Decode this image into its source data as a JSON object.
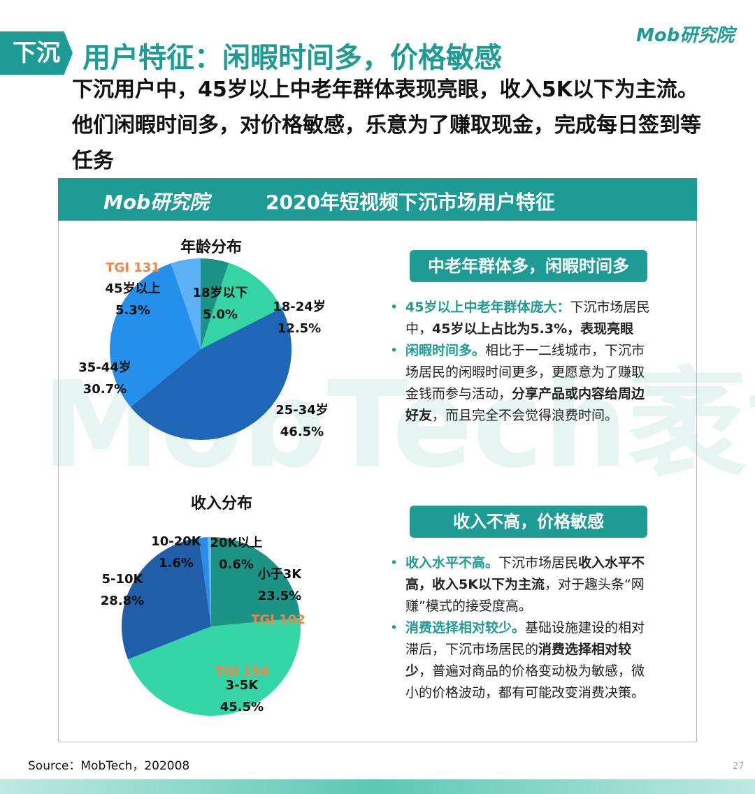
{
  "header": {
    "tag": "下沉",
    "title": "用户特征：闲暇时间多，价格敏感",
    "logo": "Mob研究院",
    "summary": "下沉用户中，45岁以上中老年群体表现亮眼，收入5K以下为主流。他们闲暇时间多，对价格敏感，乐意为了赚取现金，完成每日签到等任务"
  },
  "panel": {
    "title": "2020年短视频下沉市场用户特征",
    "watermark": "MobTech袤博"
  },
  "chart_data": [
    {
      "type": "pie",
      "title": "年龄分布",
      "categories": [
        "18岁以下",
        "18-24岁",
        "25-34岁",
        "35-44岁",
        "45岁以上"
      ],
      "values": [
        5.0,
        12.5,
        46.5,
        30.7,
        5.3
      ],
      "value_labels": [
        "5.0%",
        "12.5%",
        "46.5%",
        "30.7%",
        "5.3%"
      ],
      "colors": [
        "#1b9486",
        "#34d4a4",
        "#1f66b6",
        "#2490ec",
        "#5cb2f4"
      ],
      "annotations": [
        "TGI 131"
      ]
    },
    {
      "type": "pie",
      "title": "收入分布",
      "categories": [
        "小于3K",
        "3-5K",
        "5-10K",
        "10-20K",
        "20K以上"
      ],
      "values": [
        23.5,
        45.5,
        28.8,
        1.6,
        0.6
      ],
      "value_labels": [
        "23.5%",
        "45.5%",
        "28.8%",
        "1.6%",
        "0.6%"
      ],
      "colors": [
        "#1b9486",
        "#34d6a8",
        "#1f5ea8",
        "#2a8ee8",
        "#6ab8f5"
      ],
      "annotations": [
        "TGI 102",
        "TGI 156"
      ]
    }
  ],
  "insights": [
    {
      "heading": "中老年群体多，闲暇时间多",
      "bullets": [
        {
          "lead": "45岁以上中老年群体庞大：",
          "runs": [
            {
              "text": "下沉市场居民中，",
              "bold": false
            },
            {
              "text": "45岁以上占比为5.3%，表现亮眼",
              "bold": true
            }
          ]
        },
        {
          "lead": "闲暇时间多。",
          "runs": [
            {
              "text": "相比于一二线城市，下沉市场居民的闲暇时间更多，更愿意为了赚取金钱而参与活动，",
              "bold": false
            },
            {
              "text": "分享产品或内容给周边好友",
              "bold": true
            },
            {
              "text": "，而且完全不会觉得浪费时间。",
              "bold": false
            }
          ]
        }
      ]
    },
    {
      "heading": "收入不高，价格敏感",
      "bullets": [
        {
          "lead": "收入水平不高。",
          "runs": [
            {
              "text": "下沉市场居民",
              "bold": false
            },
            {
              "text": "收入水平不高，收入5K以下为主流",
              "bold": true
            },
            {
              "text": "，对于趣头条“网赚”模式的接受度高。",
              "bold": false
            }
          ]
        },
        {
          "lead": "消费选择相对较少。",
          "runs": [
            {
              "text": "基础设施建设的相对滞后，下沉市场居民的",
              "bold": false
            },
            {
              "text": "消费选择相对较少",
              "bold": true
            },
            {
              "text": "，普遍对商品的价格变动极为敏感，微小的价格波动，都有可能改变消费决策。",
              "bold": false
            }
          ]
        }
      ]
    }
  ],
  "footer": {
    "source": "Source：MobTech，202008",
    "page": "27"
  }
}
